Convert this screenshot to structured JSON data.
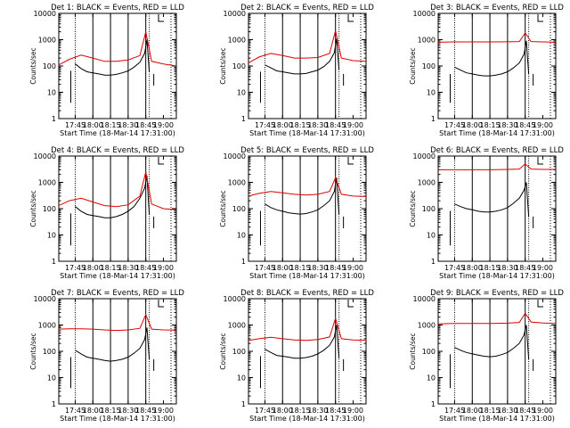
{
  "colors": {
    "events": "#000000",
    "lld": "#e00000",
    "background": "#ffffff",
    "axes": "#000000"
  },
  "chart_data": [
    {
      "type": "line",
      "title": "Det 1: BLACK = Events, RED = LLD",
      "xlabel": "Start Time (18-Mar-14 17:31:00)",
      "ylabel": "Counts/sec",
      "xticks": [
        "17:45",
        "18:00",
        "18:15",
        "18:30",
        "18:45",
        "19:00"
      ],
      "yticks": [
        "1",
        "10",
        "100",
        "1000",
        "10000"
      ],
      "xlim": [
        "17:31",
        "19:11"
      ],
      "ylim": [
        1,
        10000
      ],
      "yscale": "log",
      "series": [
        {
          "name": "Events",
          "color": "#000000",
          "x": [
            "17:45",
            "17:50",
            "17:55",
            "18:00",
            "18:05",
            "18:10",
            "18:15",
            "18:20",
            "18:25",
            "18:30",
            "18:35",
            "18:40",
            "18:44",
            "18:46",
            "18:48"
          ],
          "values": [
            120,
            80,
            60,
            55,
            50,
            45,
            45,
            48,
            55,
            65,
            90,
            140,
            300,
            1000,
            60
          ]
        },
        {
          "name": "LLD",
          "color": "#e00000",
          "x": [
            "17:31",
            "17:40",
            "17:50",
            "18:00",
            "18:10",
            "18:20",
            "18:30",
            "18:40",
            "18:45",
            "18:50",
            "19:00",
            "19:11"
          ],
          "values": [
            110,
            180,
            260,
            200,
            150,
            150,
            170,
            250,
            2000,
            150,
            120,
            100
          ]
        }
      ]
    },
    {
      "type": "line",
      "title": "Det 2: BLACK = Events, RED = LLD",
      "xlabel": "Start Time (18-Mar-14 17:31:00)",
      "ylabel": "Counts/sec",
      "xticks": [
        "17:45",
        "18:00",
        "18:15",
        "18:30",
        "18:45",
        "19:00"
      ],
      "yticks": [
        "1",
        "10",
        "100",
        "1000",
        "10000"
      ],
      "xlim": [
        "17:31",
        "19:11"
      ],
      "ylim": [
        1,
        10000
      ],
      "yscale": "log",
      "series": [
        {
          "name": "Events",
          "color": "#000000",
          "x": [
            "17:45",
            "17:50",
            "17:55",
            "18:00",
            "18:05",
            "18:10",
            "18:15",
            "18:20",
            "18:25",
            "18:30",
            "18:35",
            "18:40",
            "18:44",
            "18:46",
            "18:48"
          ],
          "values": [
            110,
            85,
            65,
            60,
            55,
            50,
            50,
            52,
            60,
            70,
            95,
            150,
            320,
            1100,
            70
          ]
        },
        {
          "name": "LLD",
          "color": "#e00000",
          "x": [
            "17:31",
            "17:40",
            "17:50",
            "18:00",
            "18:10",
            "18:20",
            "18:30",
            "18:40",
            "18:45",
            "18:50",
            "19:00",
            "19:11"
          ],
          "values": [
            130,
            220,
            300,
            250,
            200,
            200,
            210,
            300,
            2200,
            200,
            160,
            150
          ]
        }
      ]
    },
    {
      "type": "line",
      "title": "Det 3: BLACK = Events, RED = LLD",
      "xlabel": "Start Time (18-Mar-14 17:31:00)",
      "ylabel": "Counts/sec",
      "xticks": [
        "17:45",
        "18:00",
        "18:15",
        "18:30",
        "18:45",
        "19:00"
      ],
      "yticks": [
        "1",
        "10",
        "100",
        "1000",
        "10000"
      ],
      "xlim": [
        "17:31",
        "19:11"
      ],
      "ylim": [
        1,
        10000
      ],
      "yscale": "log",
      "series": [
        {
          "name": "Events",
          "color": "#000000",
          "x": [
            "17:45",
            "17:50",
            "17:55",
            "18:00",
            "18:05",
            "18:10",
            "18:15",
            "18:20",
            "18:25",
            "18:30",
            "18:35",
            "18:40",
            "18:44",
            "18:46",
            "18:48"
          ],
          "values": [
            90,
            70,
            55,
            50,
            45,
            42,
            42,
            45,
            50,
            60,
            85,
            130,
            280,
            900,
            50
          ]
        },
        {
          "name": "LLD",
          "color": "#e00000",
          "x": [
            "17:31",
            "17:45",
            "18:00",
            "18:15",
            "18:30",
            "18:40",
            "18:45",
            "18:50",
            "19:00",
            "19:11"
          ],
          "values": [
            800,
            820,
            820,
            820,
            830,
            850,
            1800,
            850,
            820,
            800
          ]
        }
      ]
    },
    {
      "type": "line",
      "title": "Det 4: BLACK = Events, RED = LLD",
      "xlabel": "Start Time (18-Mar-14 17:31:00)",
      "ylabel": "Counts/sec",
      "xticks": [
        "17:45",
        "18:00",
        "18:15",
        "18:30",
        "18:45",
        "19:00"
      ],
      "yticks": [
        "1",
        "10",
        "100",
        "1000",
        "10000"
      ],
      "xlim": [
        "17:31",
        "19:11"
      ],
      "ylim": [
        1,
        10000
      ],
      "yscale": "log",
      "series": [
        {
          "name": "Events",
          "color": "#000000",
          "x": [
            "17:45",
            "17:50",
            "17:55",
            "18:00",
            "18:05",
            "18:10",
            "18:15",
            "18:20",
            "18:25",
            "18:30",
            "18:35",
            "18:40",
            "18:44",
            "18:46",
            "18:48"
          ],
          "values": [
            120,
            80,
            60,
            55,
            50,
            45,
            45,
            50,
            60,
            80,
            120,
            250,
            600,
            1800,
            60
          ]
        },
        {
          "name": "LLD",
          "color": "#e00000",
          "x": [
            "17:31",
            "17:40",
            "17:50",
            "18:00",
            "18:10",
            "18:20",
            "18:30",
            "18:40",
            "18:45",
            "18:50",
            "19:00",
            "19:11"
          ],
          "values": [
            130,
            200,
            250,
            180,
            130,
            120,
            140,
            300,
            2500,
            150,
            100,
            90
          ]
        }
      ]
    },
    {
      "type": "line",
      "title": "Det 5: BLACK = Events, RED = LLD",
      "xlabel": "Start Time (18-Mar-14 17:31:00)",
      "ylabel": "Counts/sec",
      "xticks": [
        "17:45",
        "18:00",
        "18:15",
        "18:30",
        "18:45",
        "19:00"
      ],
      "yticks": [
        "1",
        "10",
        "100",
        "1000",
        "10000"
      ],
      "xlim": [
        "17:31",
        "19:11"
      ],
      "ylim": [
        1,
        10000
      ],
      "yscale": "log",
      "series": [
        {
          "name": "Events",
          "color": "#000000",
          "x": [
            "17:45",
            "17:50",
            "17:55",
            "18:00",
            "18:05",
            "18:10",
            "18:15",
            "18:20",
            "18:25",
            "18:30",
            "18:35",
            "18:40",
            "18:44",
            "18:46",
            "18:48"
          ],
          "values": [
            150,
            110,
            90,
            80,
            70,
            65,
            62,
            65,
            75,
            90,
            130,
            200,
            450,
            1500,
            60
          ]
        },
        {
          "name": "LLD",
          "color": "#e00000",
          "x": [
            "17:31",
            "17:40",
            "17:50",
            "18:00",
            "18:10",
            "18:20",
            "18:30",
            "18:40",
            "18:45",
            "18:50",
            "19:00",
            "19:11"
          ],
          "values": [
            300,
            380,
            450,
            400,
            350,
            330,
            350,
            450,
            1500,
            350,
            300,
            290
          ]
        }
      ]
    },
    {
      "type": "line",
      "title": "Det 6: BLACK = Events, RED = LLD",
      "xlabel": "Start Time (18-Mar-14 17:31:00)",
      "ylabel": "Counts/sec",
      "xticks": [
        "17:45",
        "18:00",
        "18:15",
        "18:30",
        "18:45",
        "19:00"
      ],
      "yticks": [
        "1",
        "10",
        "100",
        "1000",
        "10000"
      ],
      "xlim": [
        "17:31",
        "19:11"
      ],
      "ylim": [
        1,
        10000
      ],
      "yscale": "log",
      "series": [
        {
          "name": "Events",
          "color": "#000000",
          "x": [
            "17:45",
            "17:50",
            "17:55",
            "18:00",
            "18:05",
            "18:10",
            "18:15",
            "18:20",
            "18:25",
            "18:30",
            "18:35",
            "18:40",
            "18:44",
            "18:46",
            "18:48"
          ],
          "values": [
            150,
            120,
            100,
            90,
            80,
            75,
            75,
            80,
            90,
            110,
            160,
            250,
            500,
            1000,
            50
          ]
        },
        {
          "name": "LLD",
          "color": "#e00000",
          "x": [
            "17:31",
            "17:45",
            "18:00",
            "18:15",
            "18:30",
            "18:40",
            "18:45",
            "18:50",
            "19:00",
            "19:11"
          ],
          "values": [
            3000,
            3000,
            3000,
            3000,
            3100,
            3200,
            5000,
            3200,
            3100,
            3100
          ]
        }
      ]
    },
    {
      "type": "line",
      "title": "Det 7: BLACK = Events, RED = LLD",
      "xlabel": "Start Time (18-Mar-14 17:31:00)",
      "ylabel": "Counts/sec",
      "xticks": [
        "17:45",
        "18:00",
        "18:15",
        "18:30",
        "18:45",
        "19:00"
      ],
      "yticks": [
        "1",
        "10",
        "100",
        "1000",
        "10000"
      ],
      "xlim": [
        "17:31",
        "19:11"
      ],
      "ylim": [
        1,
        10000
      ],
      "yscale": "log",
      "series": [
        {
          "name": "Events",
          "color": "#000000",
          "x": [
            "17:45",
            "17:50",
            "17:55",
            "18:00",
            "18:05",
            "18:10",
            "18:15",
            "18:20",
            "18:25",
            "18:30",
            "18:35",
            "18:40",
            "18:44",
            "18:46",
            "18:48"
          ],
          "values": [
            110,
            80,
            60,
            55,
            50,
            45,
            42,
            45,
            50,
            60,
            85,
            130,
            280,
            800,
            50
          ]
        },
        {
          "name": "LLD",
          "color": "#e00000",
          "x": [
            "17:31",
            "17:40",
            "17:50",
            "18:00",
            "18:10",
            "18:20",
            "18:30",
            "18:40",
            "18:45",
            "18:50",
            "19:00",
            "19:11"
          ],
          "values": [
            700,
            720,
            720,
            700,
            650,
            620,
            650,
            750,
            2500,
            700,
            650,
            640
          ]
        }
      ]
    },
    {
      "type": "line",
      "title": "Det 8: BLACK = Events, RED = LLD",
      "xlabel": "Start Time (18-Mar-14 17:31:00)",
      "ylabel": "Counts/sec",
      "xticks": [
        "17:45",
        "18:00",
        "18:15",
        "18:30",
        "18:45",
        "19:00"
      ],
      "yticks": [
        "1",
        "10",
        "100",
        "1000",
        "10000"
      ],
      "xlim": [
        "17:31",
        "19:11"
      ],
      "ylim": [
        1,
        10000
      ],
      "yscale": "log",
      "series": [
        {
          "name": "Events",
          "color": "#000000",
          "x": [
            "17:45",
            "17:50",
            "17:55",
            "18:00",
            "18:05",
            "18:10",
            "18:15",
            "18:20",
            "18:25",
            "18:30",
            "18:35",
            "18:40",
            "18:44",
            "18:46",
            "18:48"
          ],
          "values": [
            120,
            90,
            70,
            65,
            60,
            55,
            55,
            58,
            65,
            80,
            110,
            170,
            350,
            1000,
            55
          ]
        },
        {
          "name": "LLD",
          "color": "#e00000",
          "x": [
            "17:31",
            "17:40",
            "17:50",
            "18:00",
            "18:10",
            "18:20",
            "18:30",
            "18:40",
            "18:45",
            "18:50",
            "19:00",
            "19:11"
          ],
          "values": [
            260,
            300,
            340,
            300,
            270,
            260,
            280,
            350,
            1800,
            300,
            270,
            260
          ]
        }
      ]
    },
    {
      "type": "line",
      "title": "Det 9: BLACK = Events, RED = LLD",
      "xlabel": "Start Time (18-Mar-14 17:31:00)",
      "ylabel": "Counts/sec",
      "xticks": [
        "17:45",
        "18:00",
        "18:15",
        "18:30",
        "18:45",
        "19:00"
      ],
      "yticks": [
        "1",
        "10",
        "100",
        "1000",
        "10000"
      ],
      "xlim": [
        "17:31",
        "19:11"
      ],
      "ylim": [
        1,
        10000
      ],
      "yscale": "log",
      "series": [
        {
          "name": "Events",
          "color": "#000000",
          "x": [
            "17:45",
            "17:50",
            "17:55",
            "18:00",
            "18:05",
            "18:10",
            "18:15",
            "18:20",
            "18:25",
            "18:30",
            "18:35",
            "18:40",
            "18:44",
            "18:46",
            "18:48"
          ],
          "values": [
            140,
            110,
            90,
            80,
            72,
            65,
            62,
            65,
            75,
            90,
            130,
            200,
            420,
            1000,
            50
          ]
        },
        {
          "name": "LLD",
          "color": "#e00000",
          "x": [
            "17:31",
            "17:45",
            "18:00",
            "18:15",
            "18:30",
            "18:40",
            "18:45",
            "18:50",
            "19:00",
            "19:11"
          ],
          "values": [
            1100,
            1150,
            1150,
            1150,
            1180,
            1250,
            2800,
            1300,
            1200,
            1150
          ]
        }
      ]
    }
  ]
}
